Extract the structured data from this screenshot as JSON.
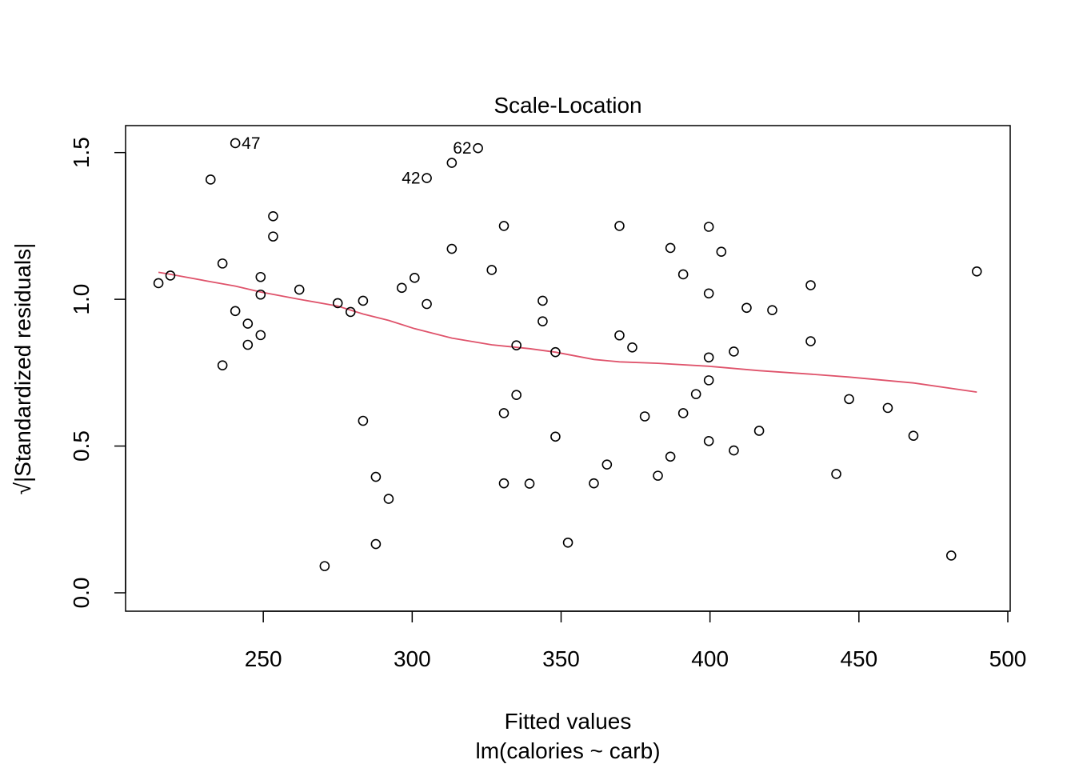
{
  "chart_data": {
    "type": "scatter",
    "title": "Scale-Location",
    "xlabel": "Fitted values",
    "xlabel_sub": "lm(calories ~ carb)",
    "ylabel": "√|Standardized residuals|",
    "xlim": [
      200,
      500
    ],
    "ylim": [
      0,
      1.6
    ],
    "xticks": [
      250,
      300,
      350,
      400,
      450,
      500
    ],
    "yticks": [
      0.0,
      0.5,
      1.0,
      1.5
    ],
    "ytick_labels": [
      "0.0",
      "0.5",
      "1.0",
      "1.5"
    ],
    "grid": false,
    "legend": "none",
    "point_color": "#000000",
    "smooth_color": "#DF536B",
    "points": [
      [
        214.8,
        1.055
      ],
      [
        218.8,
        1.081
      ],
      [
        232.3,
        1.408
      ],
      [
        236.3,
        1.122
      ],
      [
        236.3,
        0.775
      ],
      [
        240.6,
        1.532
      ],
      [
        240.6,
        0.96
      ],
      [
        244.8,
        0.917
      ],
      [
        244.8,
        0.845
      ],
      [
        249.1,
        1.076
      ],
      [
        249.1,
        1.016
      ],
      [
        249.1,
        0.878
      ],
      [
        253.3,
        1.283
      ],
      [
        253.3,
        1.214
      ],
      [
        262.1,
        1.033
      ],
      [
        270.6,
        0.091
      ],
      [
        275.0,
        0.987
      ],
      [
        279.3,
        0.957
      ],
      [
        283.5,
        0.995
      ],
      [
        283.5,
        0.586
      ],
      [
        287.8,
        0.395
      ],
      [
        287.8,
        0.166
      ],
      [
        292.1,
        0.32
      ],
      [
        296.5,
        1.039
      ],
      [
        300.8,
        1.073
      ],
      [
        304.9,
        1.413
      ],
      [
        304.9,
        0.984
      ],
      [
        313.3,
        1.465
      ],
      [
        313.3,
        1.172
      ],
      [
        322.1,
        1.515
      ],
      [
        326.7,
        1.1
      ],
      [
        330.8,
        1.25
      ],
      [
        330.8,
        0.612
      ],
      [
        330.8,
        0.373
      ],
      [
        335.0,
        0.843
      ],
      [
        335.0,
        0.674
      ],
      [
        339.4,
        0.372
      ],
      [
        343.8,
        0.995
      ],
      [
        343.8,
        0.925
      ],
      [
        348.1,
        0.82
      ],
      [
        348.1,
        0.532
      ],
      [
        352.3,
        0.171
      ],
      [
        361.0,
        0.373
      ],
      [
        365.4,
        0.437
      ],
      [
        369.6,
        1.25
      ],
      [
        369.6,
        0.877
      ],
      [
        373.9,
        0.836
      ],
      [
        378.1,
        0.601
      ],
      [
        382.5,
        0.399
      ],
      [
        386.7,
        1.175
      ],
      [
        386.7,
        0.464
      ],
      [
        391.0,
        1.085
      ],
      [
        391.0,
        0.612
      ],
      [
        395.3,
        0.677
      ],
      [
        399.6,
        1.247
      ],
      [
        399.6,
        1.02
      ],
      [
        399.6,
        0.802
      ],
      [
        399.6,
        0.724
      ],
      [
        399.6,
        0.517
      ],
      [
        403.8,
        1.162
      ],
      [
        408.0,
        0.822
      ],
      [
        408.0,
        0.485
      ],
      [
        412.3,
        0.971
      ],
      [
        416.5,
        0.552
      ],
      [
        420.9,
        0.963
      ],
      [
        433.8,
        1.048
      ],
      [
        433.8,
        0.857
      ],
      [
        442.4,
        0.405
      ],
      [
        446.7,
        0.66
      ],
      [
        459.7,
        0.63
      ],
      [
        468.3,
        0.535
      ],
      [
        481.0,
        0.127
      ],
      [
        489.6,
        1.095
      ]
    ],
    "labeled_points": [
      {
        "label": "47",
        "x": 240.6,
        "y": 1.532
      },
      {
        "label": "42",
        "x": 304.9,
        "y": 1.413
      },
      {
        "label": "62",
        "x": 322.1,
        "y": 1.515
      }
    ],
    "smooth_line": [
      [
        214.8,
        1.092
      ],
      [
        218.8,
        1.085
      ],
      [
        232.3,
        1.06
      ],
      [
        240.6,
        1.045
      ],
      [
        249.1,
        1.025
      ],
      [
        262.1,
        1.0
      ],
      [
        275.0,
        0.977
      ],
      [
        283.5,
        0.95
      ],
      [
        292.1,
        0.928
      ],
      [
        300.8,
        0.9
      ],
      [
        313.3,
        0.868
      ],
      [
        326.7,
        0.845
      ],
      [
        339.4,
        0.832
      ],
      [
        348.1,
        0.82
      ],
      [
        361.0,
        0.795
      ],
      [
        369.6,
        0.787
      ],
      [
        382.5,
        0.782
      ],
      [
        399.6,
        0.772
      ],
      [
        416.5,
        0.757
      ],
      [
        433.8,
        0.745
      ],
      [
        446.7,
        0.735
      ],
      [
        468.3,
        0.715
      ],
      [
        489.6,
        0.684
      ]
    ]
  }
}
